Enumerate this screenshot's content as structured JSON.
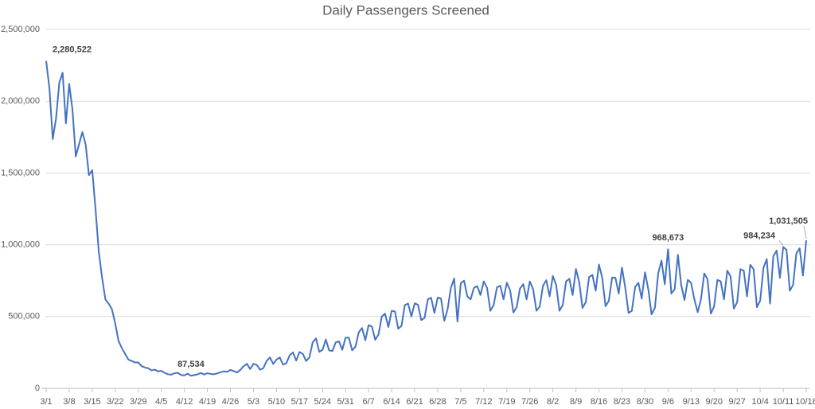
{
  "chart_data": {
    "type": "line",
    "title": "Daily Passengers Screened",
    "color": "#4472c4",
    "grid": true,
    "ylim": [
      0,
      2500000
    ],
    "yticks": [
      0,
      {
        "value": 500000,
        "label": "500,000"
      },
      {
        "value": 1000000,
        "label": "1,000,000"
      },
      {
        "value": 1500000,
        "label": "1,500,000"
      },
      {
        "value": 2000000,
        "label": "2,000,000"
      },
      {
        "value": 2500000,
        "label": "2,500,000"
      }
    ],
    "categories": [
      "3/1",
      null,
      null,
      null,
      null,
      null,
      null,
      "3/8",
      null,
      null,
      null,
      null,
      null,
      null,
      "3/15",
      null,
      null,
      null,
      null,
      null,
      null,
      "3/22",
      null,
      null,
      null,
      null,
      null,
      null,
      "3/29",
      null,
      null,
      null,
      null,
      null,
      null,
      "4/5",
      null,
      null,
      null,
      null,
      null,
      null,
      "4/12",
      null,
      null,
      null,
      null,
      null,
      null,
      "4/19",
      null,
      null,
      null,
      null,
      null,
      null,
      "4/26",
      null,
      null,
      null,
      null,
      null,
      null,
      "5/3",
      null,
      null,
      null,
      null,
      null,
      null,
      "5/10",
      null,
      null,
      null,
      null,
      null,
      null,
      "5/17",
      null,
      null,
      null,
      null,
      null,
      null,
      "5/24",
      null,
      null,
      null,
      null,
      null,
      null,
      "5/31",
      null,
      null,
      null,
      null,
      null,
      null,
      "6/7",
      null,
      null,
      null,
      null,
      null,
      null,
      "6/14",
      null,
      null,
      null,
      null,
      null,
      null,
      "6/21",
      null,
      null,
      null,
      null,
      null,
      null,
      "6/28",
      null,
      null,
      null,
      null,
      null,
      null,
      "7/5",
      null,
      null,
      null,
      null,
      null,
      null,
      "7/12",
      null,
      null,
      null,
      null,
      null,
      null,
      "7/19",
      null,
      null,
      null,
      null,
      null,
      null,
      "7/26",
      null,
      null,
      null,
      null,
      null,
      null,
      "8/2",
      null,
      null,
      null,
      null,
      null,
      null,
      "8/9",
      null,
      null,
      null,
      null,
      null,
      null,
      "8/16",
      null,
      null,
      null,
      null,
      null,
      null,
      "8/23",
      null,
      null,
      null,
      null,
      null,
      null,
      "8/30",
      null,
      null,
      null,
      null,
      null,
      null,
      "9/6",
      null,
      null,
      null,
      null,
      null,
      null,
      "9/13",
      null,
      null,
      null,
      null,
      null,
      null,
      "9/20",
      null,
      null,
      null,
      null,
      null,
      null,
      "9/27",
      null,
      null,
      null,
      null,
      null,
      null,
      "10/4",
      null,
      null,
      null,
      null,
      null,
      null,
      "10/11",
      null,
      null,
      null,
      null,
      null,
      null,
      "10/18"
    ],
    "values": [
      2280522,
      2089000,
      1736000,
      1880000,
      2130000,
      2198000,
      1845000,
      2120000,
      1940000,
      1615000,
      1700000,
      1785000,
      1700000,
      1485000,
      1520000,
      1250000,
      950000,
      770000,
      620000,
      590000,
      550000,
      450000,
      330000,
      280000,
      240000,
      200000,
      190000,
      180000,
      180000,
      155000,
      145000,
      140000,
      125000,
      130000,
      118000,
      122000,
      108000,
      98000,
      95000,
      105000,
      108000,
      93000,
      90000,
      102000,
      87534,
      92000,
      97000,
      107000,
      96000,
      105000,
      100000,
      98000,
      104000,
      112000,
      118000,
      115000,
      128000,
      120000,
      110000,
      128000,
      154000,
      171000,
      134000,
      170000,
      163000,
      130000,
      140000,
      190000,
      215000,
      170000,
      200000,
      215000,
      165000,
      175000,
      230000,
      250000,
      193000,
      253000,
      240000,
      190000,
      215000,
      320000,
      348000,
      254000,
      268000,
      340000,
      264000,
      260000,
      320000,
      327000,
      268000,
      353000,
      353000,
      265000,
      290000,
      390000,
      420000,
      335000,
      440000,
      430000,
      338000,
      375000,
      500000,
      520000,
      427000,
      540000,
      535000,
      415000,
      435000,
      580000,
      590000,
      500000,
      592000,
      582000,
      475000,
      490000,
      620000,
      630000,
      525000,
      632000,
      625000,
      470000,
      550000,
      700000,
      765000,
      465000,
      732000,
      750000,
      640000,
      620000,
      700000,
      712000,
      650000,
      745000,
      700000,
      540000,
      580000,
      703000,
      715000,
      620000,
      736000,
      683000,
      528000,
      565000,
      695000,
      725000,
      620000,
      745000,
      690000,
      540000,
      570000,
      715000,
      753000,
      640000,
      782000,
      720000,
      540000,
      580000,
      744000,
      763000,
      650000,
      831000,
      740000,
      560000,
      600000,
      775000,
      790000,
      680000,
      862000,
      770000,
      572000,
      610000,
      772000,
      770000,
      660000,
      841000,
      700000,
      525000,
      540000,
      706000,
      735000,
      625000,
      808000,
      690000,
      515000,
      560000,
      800000,
      890000,
      725000,
      968673,
      660000,
      690000,
      930000,
      720000,
      615000,
      756000,
      735000,
      620000,
      530000,
      620000,
      800000,
      760000,
      520000,
      570000,
      755000,
      745000,
      620000,
      820000,
      780000,
      555000,
      600000,
      830000,
      820000,
      640000,
      860000,
      830000,
      565000,
      610000,
      840000,
      900000,
      590000,
      920000,
      960000,
      770000,
      984234,
      965000,
      680000,
      720000,
      940000,
      975000,
      785000,
      1031505
    ],
    "value_labels": [
      "2,280,522",
      null,
      null,
      null,
      null,
      null,
      null,
      null,
      null,
      null,
      null,
      null,
      null,
      null,
      null,
      null,
      null,
      null,
      null,
      null,
      null,
      null,
      null,
      null,
      null,
      null,
      null,
      null,
      null,
      null,
      null,
      null,
      null,
      null,
      null,
      null,
      null,
      null,
      null,
      null,
      null,
      null,
      null,
      null,
      "87,534",
      null,
      null,
      null,
      null,
      null,
      null,
      null,
      null,
      null,
      null,
      null,
      null,
      null,
      null,
      null,
      null,
      null,
      null,
      null,
      null,
      null,
      null,
      null,
      null,
      null,
      null,
      null,
      null,
      null,
      null,
      null,
      null,
      null,
      null,
      null,
      null,
      null,
      null,
      null,
      null,
      null,
      null,
      null,
      null,
      null,
      null,
      null,
      null,
      null,
      null,
      null,
      null,
      null,
      null,
      null,
      null,
      null,
      null,
      null,
      null,
      null,
      null,
      null,
      null,
      null,
      null,
      null,
      null,
      null,
      null,
      null,
      null,
      null,
      null,
      null,
      null,
      null,
      null,
      null,
      null,
      null,
      null,
      null,
      null,
      null,
      null,
      null,
      null,
      null,
      null,
      null,
      null,
      null,
      null,
      null,
      null,
      null,
      null,
      null,
      null,
      null,
      null,
      null,
      null,
      null,
      null,
      null,
      null,
      null,
      null,
      null,
      null,
      null,
      null,
      null,
      null,
      null,
      null,
      null,
      null,
      null,
      null,
      null,
      null,
      null,
      null,
      null,
      null,
      null,
      null,
      null,
      null,
      null,
      null,
      null,
      null,
      null,
      null,
      null,
      null,
      null,
      null,
      null,
      null,
      "968,673",
      null,
      null,
      null,
      null,
      null,
      null,
      null,
      null,
      null,
      null,
      null,
      null,
      null,
      null,
      null,
      null,
      null,
      null,
      null,
      null,
      null,
      null,
      null,
      null,
      null,
      null,
      null,
      null,
      null,
      null,
      null,
      null,
      null,
      null,
      "984,234",
      null,
      null,
      null,
      null,
      null,
      null,
      "1,031,505"
    ]
  }
}
